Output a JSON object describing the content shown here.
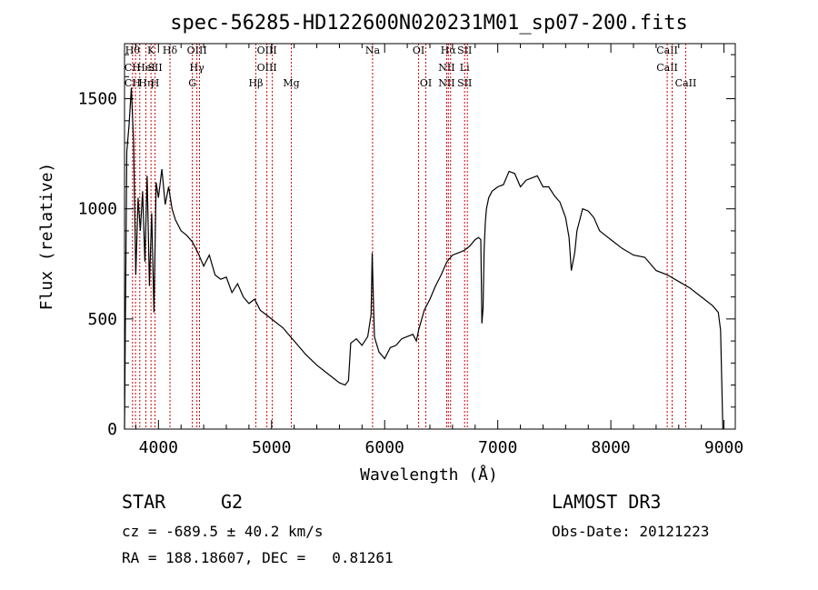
{
  "chart_data": {
    "type": "line",
    "title": "spec-56285-HD122600N020231M01_sp07-200.fits",
    "xlabel": "Wavelength (Å)",
    "ylabel": "Flux (relative)",
    "xlim": [
      3700,
      9100
    ],
    "ylim": [
      0,
      1750
    ],
    "xticks": [
      4000,
      5000,
      6000,
      7000,
      8000,
      9000
    ],
    "yticks": [
      0,
      500,
      1000,
      1500
    ],
    "grid": false,
    "line_color": "#000000",
    "marker_color": "#cc0000",
    "series": [
      {
        "x": [
          3700,
          3720,
          3740,
          3760,
          3780,
          3800,
          3820,
          3840,
          3860,
          3880,
          3900,
          3920,
          3940,
          3960,
          3980,
          4000,
          4030,
          4060,
          4090,
          4120,
          4150,
          4200,
          4250,
          4300,
          4350,
          4400,
          4450,
          4500,
          4550,
          4600,
          4650,
          4700,
          4750,
          4800,
          4850,
          4900,
          4950,
          5000,
          5100,
          5200,
          5300,
          5400,
          5500,
          5600,
          5650,
          5680,
          5700,
          5750,
          5800,
          5850,
          5880,
          5890,
          5900,
          5910,
          5920,
          5950,
          6000,
          6050,
          6100,
          6150,
          6200,
          6250,
          6280,
          6300,
          6350,
          6400,
          6450,
          6500,
          6550,
          6600,
          6650,
          6700,
          6750,
          6800,
          6830,
          6850,
          6860,
          6870,
          6880,
          6890,
          6900,
          6920,
          6950,
          7000,
          7050,
          7100,
          7150,
          7200,
          7250,
          7300,
          7350,
          7400,
          7450,
          7500,
          7550,
          7600,
          7630,
          7650,
          7680,
          7700,
          7750,
          7800,
          7850,
          7900,
          7950,
          8000,
          8100,
          8200,
          8300,
          8400,
          8500,
          8600,
          8700,
          8800,
          8900,
          8950,
          8970,
          8990
        ],
        "y": [
          0,
          1260,
          1380,
          1550,
          1300,
          700,
          1050,
          900,
          1080,
          760,
          1150,
          650,
          980,
          530,
          1120,
          1050,
          1180,
          1020,
          1100,
          1000,
          950,
          900,
          880,
          850,
          800,
          740,
          790,
          700,
          680,
          690,
          620,
          660,
          600,
          570,
          590,
          540,
          520,
          500,
          460,
          400,
          340,
          290,
          250,
          210,
          200,
          220,
          390,
          410,
          380,
          420,
          520,
          800,
          590,
          420,
          400,
          350,
          320,
          370,
          380,
          410,
          420,
          430,
          400,
          450,
          540,
          590,
          650,
          700,
          760,
          790,
          800,
          810,
          830,
          860,
          870,
          860,
          480,
          550,
          820,
          940,
          1000,
          1050,
          1080,
          1100,
          1110,
          1170,
          1160,
          1100,
          1130,
          1140,
          1150,
          1100,
          1100,
          1060,
          1030,
          960,
          870,
          720,
          800,
          900,
          1000,
          990,
          960,
          900,
          880,
          860,
          820,
          790,
          780,
          720,
          700,
          670,
          640,
          600,
          560,
          530,
          450,
          0
        ]
      }
    ],
    "line_markers": [
      {
        "x": 3771,
        "labels": [
          "Hθ",
          "CH",
          "CH"
        ]
      },
      {
        "x": 3797,
        "labels": [
          "",
          "",
          ""
        ]
      },
      {
        "x": 3835,
        "labels": [
          "",
          "",
          ""
        ]
      },
      {
        "x": 3889,
        "labels": [
          "",
          "HeI",
          "Hη"
        ]
      },
      {
        "x": 3934,
        "labels": [
          "K",
          "",
          ""
        ]
      },
      {
        "x": 3970,
        "labels": [
          "",
          "SII",
          "H"
        ]
      },
      {
        "x": 4102,
        "labels": [
          "Hδ",
          "",
          ""
        ]
      },
      {
        "x": 4300,
        "labels": [
          "",
          "",
          "G"
        ]
      },
      {
        "x": 4340,
        "labels": [
          "OIII",
          "Hγ",
          ""
        ]
      },
      {
        "x": 4363,
        "labels": [
          "",
          "",
          ""
        ]
      },
      {
        "x": 4861,
        "labels": [
          "",
          "",
          "Hβ"
        ]
      },
      {
        "x": 4959,
        "labels": [
          "OIII",
          "OIII",
          ""
        ]
      },
      {
        "x": 5007,
        "labels": [
          "",
          "",
          ""
        ]
      },
      {
        "x": 5175,
        "labels": [
          "",
          "",
          "Mg"
        ]
      },
      {
        "x": 5893,
        "labels": [
          "Na",
          "",
          ""
        ]
      },
      {
        "x": 6300,
        "labels": [
          "OI",
          "",
          ""
        ]
      },
      {
        "x": 6364,
        "labels": [
          "",
          "",
          "OI"
        ]
      },
      {
        "x": 6548,
        "labels": [
          "",
          "NII",
          "NII"
        ]
      },
      {
        "x": 6563,
        "labels": [
          "Hα",
          "",
          ""
        ]
      },
      {
        "x": 6583,
        "labels": [
          "",
          "",
          ""
        ]
      },
      {
        "x": 6707,
        "labels": [
          "SII",
          "Li",
          "SII"
        ]
      },
      {
        "x": 6731,
        "labels": [
          "",
          "",
          ""
        ]
      },
      {
        "x": 8498,
        "labels": [
          "CaII",
          "CaII",
          ""
        ]
      },
      {
        "x": 8542,
        "labels": [
          "",
          "",
          ""
        ]
      },
      {
        "x": 8662,
        "labels": [
          "",
          "",
          "CaII"
        ]
      }
    ]
  },
  "info": {
    "class": "STAR",
    "subclass": "G2",
    "survey": "LAMOST DR3",
    "cz": "cz = -689.5 ± 40.2 km/s",
    "obs_date": "Obs-Date: 20121223",
    "coords": "RA = 188.18607, DEC =   0.81261"
  }
}
